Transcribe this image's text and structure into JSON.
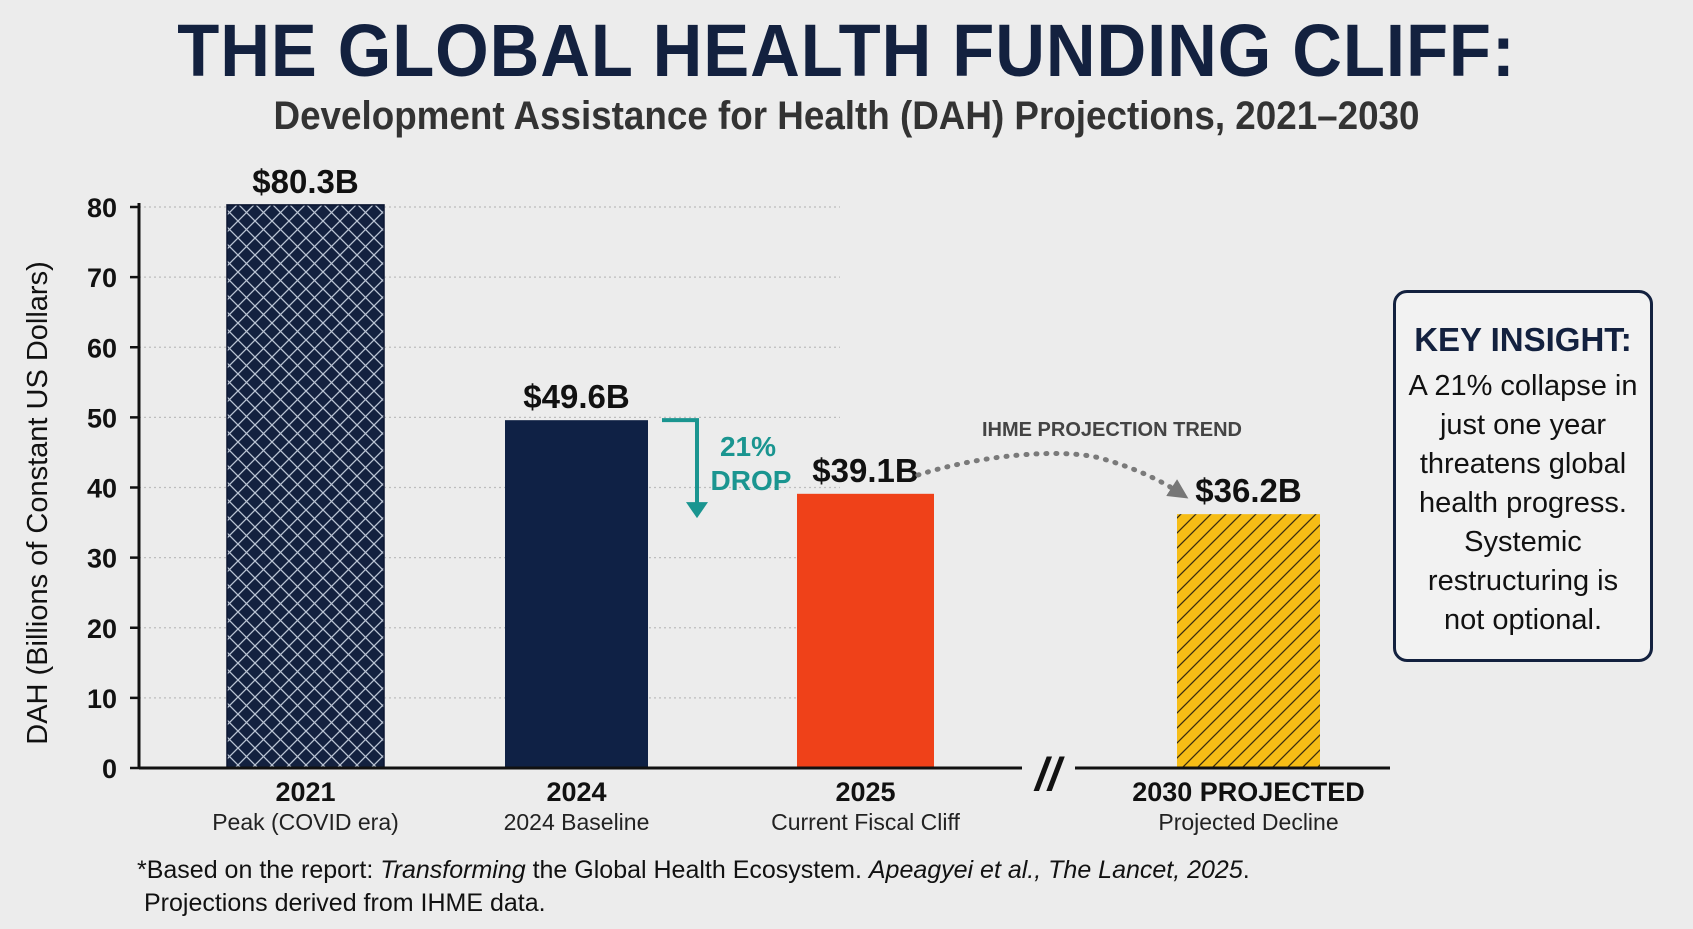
{
  "header": {
    "title": "THE GLOBAL HEALTH FUNDING CLIFF:",
    "subtitle": "Development Assistance for Health (DAH) Projections, 2021–2030"
  },
  "chart_data": {
    "type": "bar",
    "ylabel": "DAH (Billions of Constant US Dollars)",
    "ylim": [
      0,
      80
    ],
    "yticks": [
      0,
      10,
      20,
      30,
      40,
      50,
      60,
      70,
      80
    ],
    "grid": true,
    "categories": [
      "2021",
      "2024",
      "2025",
      "2030 PROJECTED"
    ],
    "sublabels": [
      "Peak (COVID era)",
      "2024 Baseline",
      "Current Fiscal Cliff",
      "Projected Decline"
    ],
    "values": [
      80.3,
      49.6,
      39.1,
      36.2
    ],
    "value_labels": [
      "$80.3B",
      "$49.6B",
      "$39.1B",
      "$36.2B"
    ],
    "bar_styles": [
      "crosshatch",
      "solid",
      "solid",
      "diagonal-hatch"
    ],
    "colors": [
      "#13213f",
      "#0f2145",
      "#ef4119",
      "#f6bd16"
    ],
    "axis_break": "//",
    "annotations": {
      "drop_text_line1": "21%",
      "drop_text_line2": "DROP",
      "drop_color": "#1a9590",
      "trend_label": "IHME PROJECTION TREND"
    }
  },
  "key_insight": {
    "heading": "KEY INSIGHT:",
    "text": "A 21% collapse in just one year threatens global health progress. Systemic restructuring is not optional."
  },
  "footnote": {
    "prefix": "*Based on the report: ",
    "italic1": "Transforming",
    "middle": " the Global Health Ecosystem. ",
    "italic2": "Apeagyei et al., The Lancet, 2025",
    "suffix": ".",
    "line2": "Projections derived from IHME data."
  }
}
